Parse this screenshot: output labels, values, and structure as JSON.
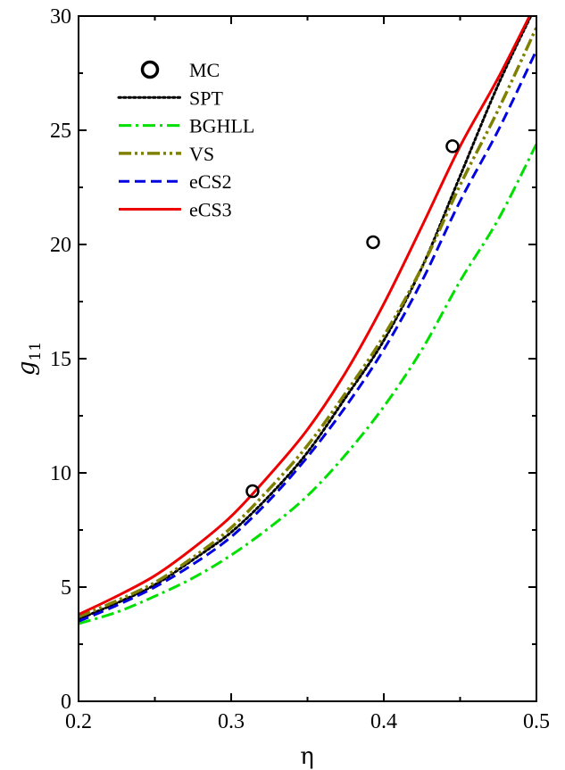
{
  "chart_data": {
    "type": "line",
    "xlabel": "η",
    "ylabel_main": "g",
    "ylabel_sub": "11",
    "xlim": [
      0.2,
      0.5
    ],
    "ylim": [
      0,
      30
    ],
    "xticks": [
      "0.2",
      "0.3",
      "0.4",
      "0.5"
    ],
    "yticks": [
      "0",
      "5",
      "10",
      "15",
      "20",
      "25",
      "30"
    ],
    "grid": false,
    "legend_position": "top-left",
    "x": [
      0.2,
      0.225,
      0.25,
      0.275,
      0.3,
      0.325,
      0.35,
      0.375,
      0.4,
      0.425,
      0.45,
      0.475,
      0.5
    ],
    "series": [
      {
        "name": "MC",
        "style": "marker",
        "color": "#000000",
        "points": [
          [
            0.314,
            9.2
          ],
          [
            0.393,
            20.1
          ],
          [
            0.445,
            24.3
          ]
        ]
      },
      {
        "name": "SPT",
        "style": "dotted",
        "color": "#000000",
        "values": [
          3.6,
          4.3,
          5.1,
          6.2,
          7.4,
          9.0,
          10.9,
          13.3,
          15.8,
          19.0,
          23.0,
          27.0,
          30.5
        ]
      },
      {
        "name": "BGHLL",
        "style": "dashdot",
        "color": "#00e000",
        "values": [
          3.4,
          3.9,
          4.6,
          5.4,
          6.4,
          7.6,
          9.0,
          10.8,
          12.9,
          15.4,
          18.4,
          21.1,
          24.4
        ]
      },
      {
        "name": "VS",
        "style": "dashdotdot",
        "color": "#808000",
        "values": [
          3.7,
          4.4,
          5.2,
          6.3,
          7.6,
          9.3,
          11.2,
          13.5,
          16.0,
          19.0,
          22.6,
          25.9,
          29.5
        ]
      },
      {
        "name": "eCS2",
        "style": "dashed",
        "color": "#0000e0",
        "values": [
          3.5,
          4.2,
          5.0,
          6.0,
          7.2,
          8.8,
          10.7,
          12.9,
          15.4,
          18.4,
          21.9,
          25.0,
          28.5
        ]
      },
      {
        "name": "eCS3",
        "style": "solid",
        "color": "#ee0000",
        "values": [
          3.8,
          4.6,
          5.5,
          6.7,
          8.1,
          9.9,
          11.9,
          14.4,
          17.4,
          20.8,
          24.3,
          27.3,
          30.6
        ]
      }
    ]
  }
}
